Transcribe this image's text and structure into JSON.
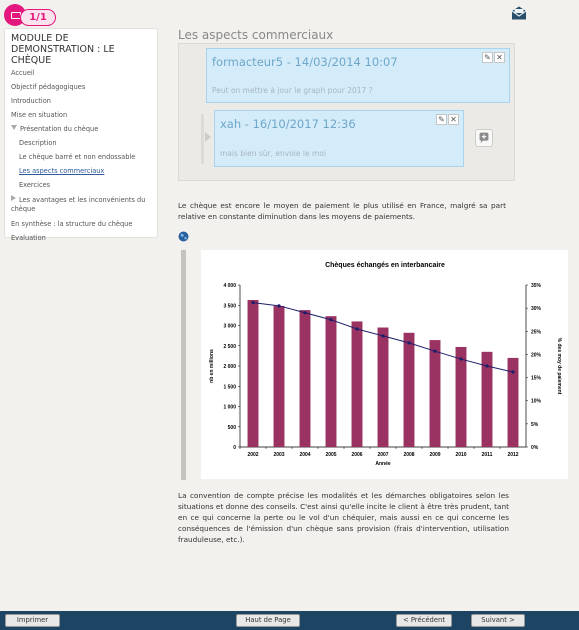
{
  "header": {
    "page_counter": "1/1",
    "mail_icon": "envelope-icon"
  },
  "sidebar": {
    "module_title": "MODULE DE DEMONSTRATION : LE CHÈQUE",
    "items": [
      {
        "label": "Accueil"
      },
      {
        "label": "Objectif pédagogiques"
      },
      {
        "label": "Introduction"
      },
      {
        "label": "Mise en situation"
      },
      {
        "label": "Présentation du chèque"
      },
      {
        "label": "Description"
      },
      {
        "label": "Le chèque barré et non endossable"
      },
      {
        "label": "Les aspects commerciaux"
      },
      {
        "label": "Exercices"
      },
      {
        "label": "Les avantages et les inconvénients du chèque"
      },
      {
        "label": "En synthèse : la structure du chèque"
      },
      {
        "label": "Evaluation"
      }
    ]
  },
  "main": {
    "section_title": "Les aspects commerciaux",
    "comments": [
      {
        "author_date": "formacteur5 - 14/03/2014 10:07",
        "text": "Peut on mettre à jour le graph pour 2017 ?"
      },
      {
        "author_date": "xah - 16/10/2017 12:36",
        "text": "mais bien sûr, envoie le moi"
      }
    ],
    "paragraph1": "Le chèque est encore le moyen de paiement le plus utilisé en France, malgré sa part relative en constante diminution dans les moyens de paiements.",
    "paragraph2": "La convention de compte précise les modalités et les démarches obligatoires selon les situations et donne des conseils. C'est ainsi qu'elle incite le client à être très prudent, tant en ce qui concerne la perte ou le vol d'un chéquier, mais aussi en ce qui concerne les conséquences de l'émission d'un chèque sans provision (frais d'intervention, utilisation frauduleuse, etc.)."
  },
  "chart_data": {
    "type": "bar",
    "title": "Chèques échangés en interbancaire",
    "xlabel": "Année",
    "ylabel": "nb en millions",
    "ylabel_right": "% des moy de paiement",
    "categories": [
      "2002",
      "2003",
      "2004",
      "2005",
      "2006",
      "2007",
      "2008",
      "2009",
      "2010",
      "2011",
      "2012"
    ],
    "series": [
      {
        "kind": "bar",
        "axis": "left",
        "values": [
          3630,
          3480,
          3380,
          3230,
          3100,
          2950,
          2820,
          2640,
          2470,
          2350,
          2200
        ]
      },
      {
        "kind": "line",
        "axis": "right",
        "values": [
          31.2,
          30.5,
          29.0,
          27.5,
          25.5,
          24.0,
          22.5,
          20.7,
          19.0,
          17.5,
          16.2
        ]
      }
    ],
    "ylim": [
      0,
      4000
    ],
    "ylim_right": [
      0,
      35
    ],
    "yticks": [
      "0",
      "500",
      "1 000",
      "1 500",
      "2 000",
      "2 500",
      "3 000",
      "3 500",
      "4 000"
    ],
    "yticks_right": [
      "0%",
      "5%",
      "10%",
      "15%",
      "20%",
      "25%",
      "30%",
      "35%"
    ],
    "bar_color": "#9a3361",
    "line_color": "#1d1d6b",
    "grid": false
  },
  "footer": {
    "print_label": "Imprimer",
    "top_label": "Haut de Page",
    "prev_label": "< Précédent",
    "next_label": "Suivant >"
  }
}
